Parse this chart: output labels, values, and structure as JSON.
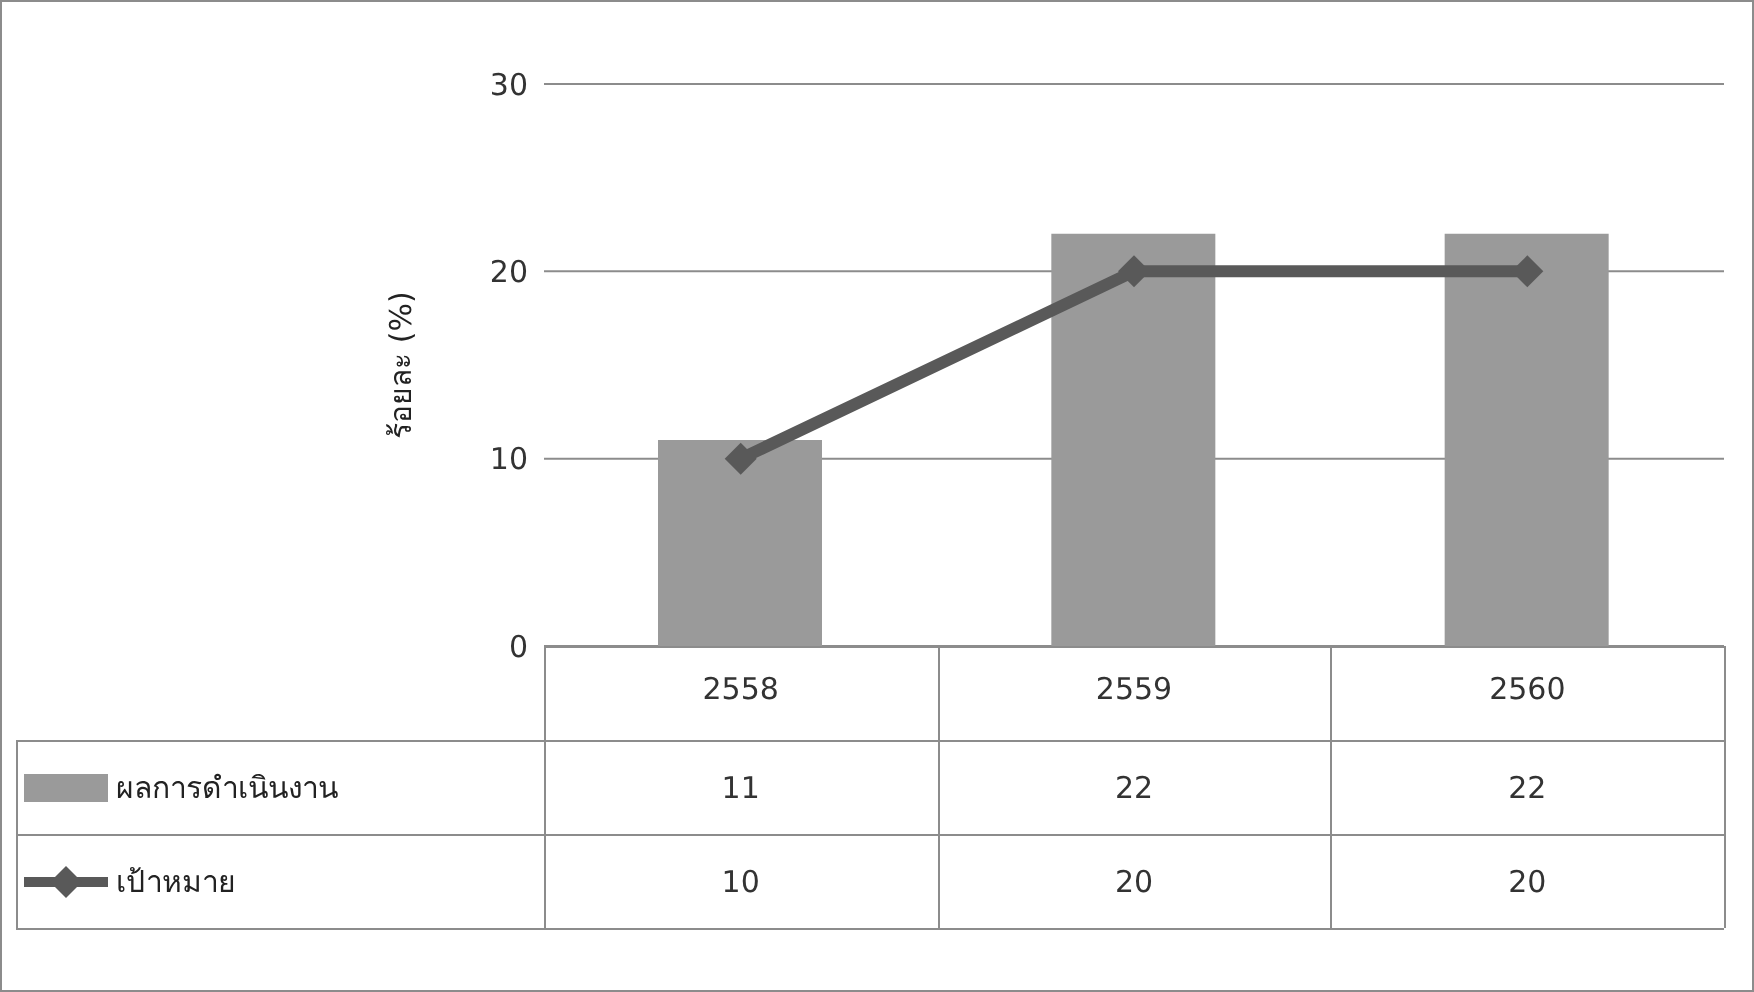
{
  "chart_data": {
    "type": "bar",
    "ylabel": "ร้อยละ (%)",
    "categories": [
      "2558",
      "2559",
      "2560"
    ],
    "series": [
      {
        "name": "ผลการดำเนินงาน",
        "color": "#9a9a9a",
        "values": [
          11,
          22,
          22
        ]
      },
      {
        "name": "เป้าหมาย",
        "type": "line",
        "color": "#595959",
        "values": [
          10,
          20,
          20
        ]
      }
    ],
    "ylim": [
      0,
      30
    ],
    "yticks": [
      0,
      10,
      20,
      30
    ],
    "grid": "y",
    "legend": "bottom",
    "data_labels": true,
    "marker": "diamond",
    "line_style": "solid"
  }
}
